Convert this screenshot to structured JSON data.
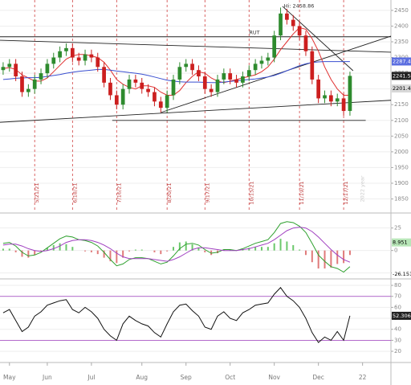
{
  "chart_data": [
    {
      "type": "candlestick",
      "xlim": [
        -0.5,
        61.5
      ],
      "ylim": [
        1813,
        2483
      ],
      "yticks": [
        1850,
        1900,
        1950,
        2000,
        2050,
        2100,
        2150,
        2200,
        2250,
        2300,
        2350,
        2400,
        2450
      ],
      "grid": true,
      "up_color": "#2e8b2e",
      "down_color": "#cc1f1f",
      "open": [
        2260,
        2270,
        2280,
        2240,
        2190,
        2200,
        2230,
        2250,
        2280,
        2300,
        2320,
        2330,
        2300,
        2290,
        2310,
        2300,
        2270,
        2220,
        2180,
        2150,
        2200,
        2230,
        2220,
        2200,
        2190,
        2160,
        2140,
        2180,
        2230,
        2270,
        2280,
        2260,
        2240,
        2200,
        2190,
        2230,
        2250,
        2230,
        2220,
        2240,
        2260,
        2280,
        2290,
        2300,
        2370,
        2440,
        2420,
        2400,
        2370,
        2320,
        2230,
        2170,
        2180,
        2160,
        2170,
        2130
      ],
      "high": [
        2285,
        2295,
        2295,
        2255,
        2215,
        2245,
        2265,
        2295,
        2315,
        2335,
        2345,
        2345,
        2315,
        2325,
        2325,
        2315,
        2285,
        2235,
        2195,
        2215,
        2245,
        2245,
        2235,
        2215,
        2205,
        2175,
        2195,
        2245,
        2285,
        2295,
        2295,
        2275,
        2255,
        2215,
        2245,
        2265,
        2265,
        2245,
        2255,
        2275,
        2295,
        2305,
        2315,
        2385,
        2458.86,
        2455,
        2435,
        2415,
        2385,
        2335,
        2245,
        2195,
        2195,
        2185,
        2185,
        2255
      ],
      "low": [
        2245,
        2255,
        2225,
        2175,
        2175,
        2185,
        2215,
        2235,
        2265,
        2285,
        2305,
        2285,
        2275,
        2275,
        2285,
        2255,
        2205,
        2165,
        2135,
        2135,
        2185,
        2205,
        2185,
        2175,
        2145,
        2125,
        2125,
        2165,
        2215,
        2255,
        2245,
        2225,
        2185,
        2175,
        2175,
        2215,
        2215,
        2205,
        2205,
        2225,
        2245,
        2265,
        2275,
        2285,
        2355,
        2405,
        2385,
        2355,
        2305,
        2215,
        2155,
        2155,
        2145,
        2145,
        2115,
        2115
      ],
      "close": [
        2270,
        2280,
        2240,
        2190,
        2200,
        2230,
        2250,
        2280,
        2300,
        2320,
        2330,
        2300,
        2290,
        2310,
        2300,
        2270,
        2220,
        2180,
        2150,
        2200,
        2230,
        2220,
        2200,
        2190,
        2160,
        2140,
        2180,
        2230,
        2270,
        2280,
        2260,
        2240,
        2200,
        2190,
        2230,
        2250,
        2230,
        2220,
        2240,
        2260,
        2280,
        2290,
        2300,
        2370,
        2440,
        2420,
        2400,
        2370,
        2320,
        2230,
        2170,
        2180,
        2160,
        2170,
        2130,
        2241.58
      ],
      "overlays": [
        {
          "color": "#e03030",
          "values": [
            2265,
            2268,
            2262,
            2245,
            2235,
            2225,
            2225,
            2235,
            2255,
            2275,
            2295,
            2305,
            2310,
            2310,
            2305,
            2300,
            2285,
            2260,
            2230,
            2215,
            2205,
            2200,
            2210,
            2210,
            2205,
            2190,
            2180,
            2180,
            2195,
            2220,
            2240,
            2255,
            2250,
            2235,
            2225,
            2220,
            2225,
            2230,
            2235,
            2240,
            2245,
            2255,
            2270,
            2295,
            2325,
            2350,
            2375,
            2395,
            2390,
            2360,
            2320,
            2270,
            2230,
            2200,
            2180,
            2180
          ]
        },
        {
          "color": "#3a4fd0",
          "values": [
            2230,
            2232,
            2234,
            2235,
            2236,
            2236,
            2237,
            2240,
            2243,
            2246,
            2250,
            2253,
            2256,
            2258,
            2260,
            2262,
            2262,
            2260,
            2257,
            2255,
            2252,
            2250,
            2247,
            2243,
            2238,
            2233,
            2228,
            2225,
            2223,
            2222,
            2222,
            2222,
            2221,
            2220,
            2220,
            2222,
            2224,
            2226,
            2228,
            2230,
            2232,
            2235,
            2238,
            2243,
            2250,
            2258,
            2266,
            2274,
            2280,
            2284,
            2286,
            2287,
            2287,
            2287,
            2287,
            2287
          ]
        }
      ],
      "trendlines": [
        {
          "x": [
            -0.5,
            61.5
          ],
          "y": [
            2366,
            2366
          ]
        },
        {
          "x": [
            -0.5,
            61.5
          ],
          "y": [
            2355,
            2317
          ]
        },
        {
          "x": [
            -0.5,
            61.5
          ],
          "y": [
            2094,
            2164
          ]
        },
        {
          "x": [
            17.3,
            57.5
          ],
          "y": [
            2100,
            2100
          ]
        },
        {
          "x": [
            25,
            61.5
          ],
          "y": [
            2125,
            2368
          ]
        },
        {
          "x": [
            44.3,
            55.5
          ],
          "y": [
            2463,
            2258
          ]
        }
      ],
      "date_lines": [
        {
          "value": 5,
          "label": "5/21/21"
        },
        {
          "value": 11,
          "label": "6/18/21"
        },
        {
          "value": 18,
          "label": "7/16/21"
        },
        {
          "value": 26,
          "label": "8/20/21"
        },
        {
          "value": 32,
          "label": "9/17/21"
        },
        {
          "value": 39,
          "label": "10/15/21"
        },
        {
          "value": 47,
          "label": "11/19/21"
        },
        {
          "value": 54,
          "label": "12/17/21"
        }
      ],
      "year_marker": {
        "value": 57,
        "label": "2022 year"
      },
      "annotations": [
        {
          "text": "Hi: 2458.86",
          "x": 44,
          "y": 2458.86
        },
        {
          "text": "RUT",
          "x": 38.5,
          "y": 2374
        }
      ],
      "price_tags": [
        2287.42,
        2241.58,
        2201.45
      ],
      "tag_colors": [
        "#5b6ee0",
        "#222222",
        "#d8d8d8"
      ]
    },
    {
      "type": "macd",
      "xlim": [
        -0.5,
        61.5
      ],
      "ylim": [
        -28,
        39
      ],
      "yticks": [
        -25,
        0,
        25
      ],
      "series": [
        {
          "color": "#2ea02e",
          "values": [
            8,
            9,
            5,
            -2,
            -6,
            -5,
            -2,
            3,
            8,
            13,
            16,
            15,
            12,
            11,
            9,
            5,
            -2,
            -10,
            -17,
            -15,
            -10,
            -8,
            -8,
            -9,
            -12,
            -15,
            -13,
            -6,
            2,
            7,
            8,
            6,
            1,
            -3,
            -2,
            1,
            1,
            0,
            2,
            5,
            8,
            10,
            12,
            20,
            30,
            32,
            31,
            27,
            20,
            8,
            -5,
            -12,
            -18,
            -20,
            -24,
            -18
          ]
        },
        {
          "color": "#a040c0",
          "values": [
            6,
            7,
            7,
            5,
            2,
            0,
            -1,
            0,
            2,
            5,
            9,
            11,
            12,
            12,
            11,
            9,
            6,
            2,
            -3,
            -7,
            -9,
            -9,
            -9,
            -9,
            -10,
            -11,
            -12,
            -10,
            -7,
            -3,
            1,
            3,
            3,
            2,
            1,
            0,
            0,
            0,
            1,
            2,
            4,
            6,
            8,
            12,
            17,
            22,
            25,
            26,
            25,
            21,
            15,
            8,
            1,
            -5,
            -10,
            -13
          ]
        }
      ],
      "histogram": {
        "up_color": "#6cc86c",
        "down_color": "#e07a7a",
        "values": [
          2,
          2,
          -2,
          -7,
          -8,
          -5,
          -1,
          3,
          6,
          8,
          7,
          4,
          0,
          -1,
          -2,
          -4,
          -8,
          -12,
          -14,
          -8,
          -1,
          1,
          1,
          0,
          -2,
          -4,
          -1,
          4,
          9,
          10,
          7,
          3,
          -2,
          -5,
          -3,
          1,
          1,
          0,
          1,
          3,
          4,
          4,
          4,
          8,
          13,
          10,
          6,
          1,
          -5,
          -13,
          -20,
          -20,
          -19,
          -15,
          -14,
          -5
        ]
      },
      "tags": [
        8.951,
        -26.151
      ],
      "tag_colors": [
        "#b8e6b8",
        "#ffffff"
      ]
    },
    {
      "type": "line",
      "xlim": [
        -0.5,
        61.5
      ],
      "ylim": [
        12,
        83.7
      ],
      "yticks": [
        20,
        30,
        40,
        50,
        60,
        70,
        80
      ],
      "reference_lines": [
        70,
        30
      ],
      "reference_color": "#a040c0",
      "series": [
        {
          "color": "#111111",
          "values": [
            55,
            58,
            48,
            38,
            42,
            52,
            56,
            62,
            64,
            66,
            67,
            58,
            55,
            60,
            56,
            50,
            40,
            34,
            30,
            45,
            52,
            48,
            45,
            43,
            37,
            33,
            45,
            56,
            62,
            63,
            57,
            52,
            42,
            40,
            52,
            56,
            50,
            48,
            55,
            58,
            62,
            63,
            64,
            72,
            78,
            70,
            66,
            60,
            50,
            37,
            28,
            33,
            30,
            38,
            30,
            52.3068
          ]
        }
      ],
      "tags": [
        52.3068
      ],
      "tag_colors": [
        "#222222"
      ],
      "xticks": [
        {
          "value": 1,
          "label": "May"
        },
        {
          "value": 7,
          "label": "Jun"
        },
        {
          "value": 14,
          "label": "Jul"
        },
        {
          "value": 22,
          "label": "Aug"
        },
        {
          "value": 29,
          "label": "Sep"
        },
        {
          "value": 36,
          "label": "Oct"
        },
        {
          "value": 43,
          "label": "Nov"
        },
        {
          "value": 50,
          "label": "Dec"
        },
        {
          "value": 57,
          "label": "22"
        }
      ]
    }
  ]
}
